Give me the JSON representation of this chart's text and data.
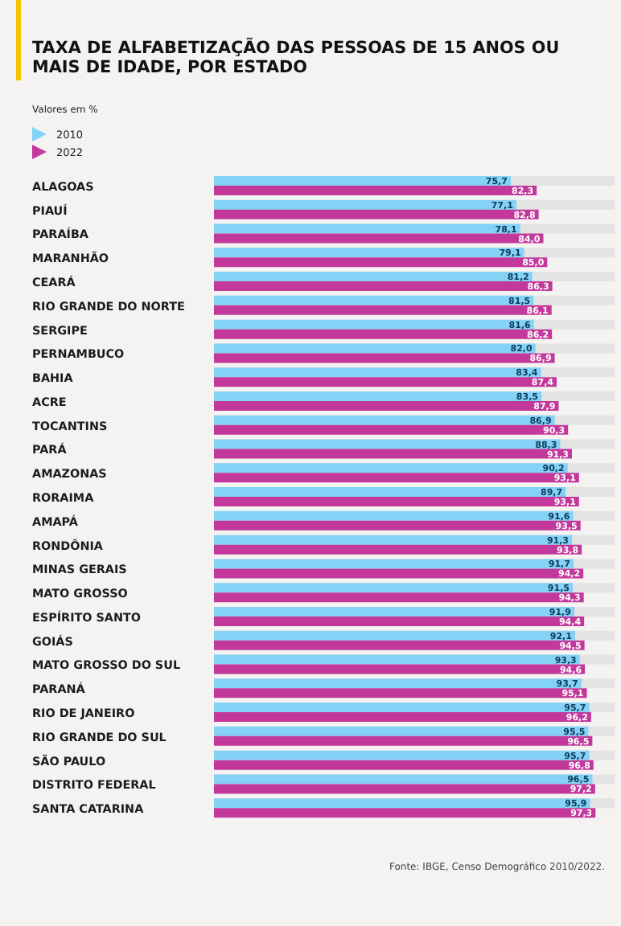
{
  "chart_data": {
    "type": "bar",
    "orientation": "horizontal",
    "title": "TAXA DE ALFABETIZAÇÃO DAS PESSOAS DE 15 ANOS OU MAIS DE IDADE, POR ESTADO",
    "subtitle": "Valores em %",
    "annotations": [
      "Fonte: IBGE, Censo Demográfico 2010/2022."
    ],
    "categories": [
      "ALAGOAS",
      "PIAUÍ",
      "PARAÍBA",
      "MARANHÃO",
      "CEARÁ",
      "RIO GRANDE DO NORTE",
      "SERGIPE",
      "PERNAMBUCO",
      "BAHIA",
      "ACRE",
      "TOCANTINS",
      "PARÁ",
      "AMAZONAS",
      "RORAIMA",
      "AMAPÁ",
      "RONDÔNIA",
      "MINAS GERAIS",
      "MATO GROSSO",
      "ESPÍRITO SANTO",
      "GOIÁS",
      "MATO GROSSO DO SUL",
      "PARANÁ",
      "RIO DE JANEIRO",
      "RIO GRANDE DO SUL",
      "SÃO PAULO",
      "DISTRITO FEDERAL",
      "SANTA CATARINA"
    ],
    "series": [
      {
        "name": "2010",
        "color": "#84d2f6",
        "values": [
          75.7,
          77.1,
          78.1,
          79.1,
          81.2,
          81.5,
          81.6,
          82.0,
          83.4,
          83.5,
          86.9,
          88.3,
          90.2,
          89.7,
          91.6,
          91.3,
          91.7,
          91.5,
          91.9,
          92.1,
          93.3,
          93.7,
          95.7,
          95.5,
          95.7,
          96.5,
          95.9
        ],
        "value_labels": [
          "75,7",
          "77,1",
          "78,1",
          "79,1",
          "81,2",
          "81,5",
          "81,6",
          "82,0",
          "83,4",
          "83,5",
          "86,9",
          "88,3",
          "90,2",
          "89,7",
          "91,6",
          "91,3",
          "91,7",
          "91,5",
          "91,9",
          "92,1",
          "93,3",
          "93,7",
          "95,7",
          "95,5",
          "95,7",
          "96,5",
          "95,9"
        ]
      },
      {
        "name": "2022",
        "color": "#c2389b",
        "values": [
          82.3,
          82.8,
          84.0,
          85.0,
          86.3,
          86.1,
          86.2,
          86.9,
          87.4,
          87.9,
          90.3,
          91.3,
          93.1,
          93.1,
          93.5,
          93.8,
          94.2,
          94.3,
          94.4,
          94.5,
          94.6,
          95.1,
          96.2,
          96.5,
          96.8,
          97.2,
          97.3
        ],
        "value_labels": [
          "82,3",
          "82,8",
          "84,0",
          "85,0",
          "86,3",
          "86,1",
          "86,2",
          "86,9",
          "87,4",
          "87,9",
          "90,3",
          "91,3",
          "93,1",
          "93,1",
          "93,5",
          "93,8",
          "94,2",
          "94,3",
          "94,4",
          "94,5",
          "94,6",
          "95,1",
          "96,2",
          "96,5",
          "96,8",
          "97,2",
          "97,3"
        ]
      }
    ],
    "legend": "top left"
  }
}
